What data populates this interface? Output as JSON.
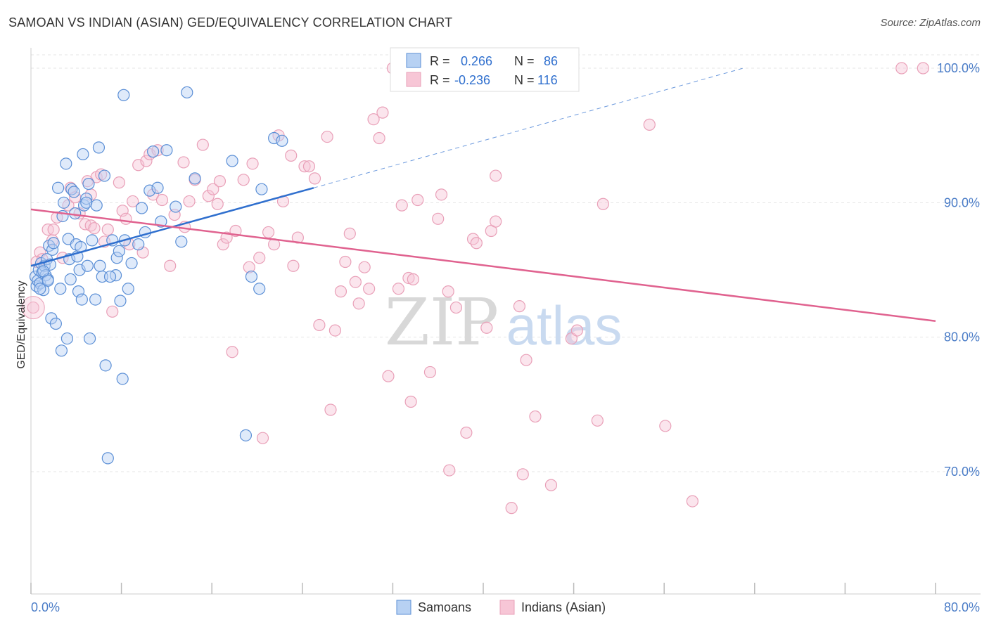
{
  "header": {
    "title": "SAMOAN VS INDIAN (ASIAN) GED/EQUIVALENCY CORRELATION CHART",
    "source": "Source: ZipAtlas.com"
  },
  "watermark": {
    "part1": "ZIP",
    "part2": "atlas"
  },
  "colors": {
    "samoans": "#5b8fd6",
    "samoans_fill": "#b7d1f3",
    "samoans_line": "#2f6fce",
    "indians": "#e9a0b8",
    "indians_fill": "#f7c6d6",
    "indians_line": "#e0628f",
    "axis_tick_label": "#4a7cc7",
    "grid": "#e4e4e4"
  },
  "legend_stats": {
    "row1": {
      "r_label": "R =",
      "r_value": "0.266",
      "n_label": "N =",
      "n_value": "86"
    },
    "row2": {
      "r_label": "R =",
      "r_value": "-0.236",
      "n_label": "N =",
      "n_value": "116"
    }
  },
  "bottom_legend": {
    "item1": "Samoans",
    "item2": "Indians (Asian)"
  },
  "chart_data": {
    "type": "scatter",
    "xlabel": "",
    "ylabel": "GED/Equivalency",
    "xlim": [
      0,
      80
    ],
    "ylim": [
      60,
      103
    ],
    "x_tick_labels": {
      "min": "0.0%",
      "max": "80.0%"
    },
    "y_ticks": [
      70,
      80,
      90,
      100
    ],
    "y_tick_labels": [
      "70.0%",
      "80.0%",
      "90.0%",
      "100.0%"
    ],
    "grid": true,
    "legend_position": "top-center",
    "series": [
      {
        "name": "Samoans",
        "r": 0.266,
        "n": 86,
        "trend": {
          "x": [
            0,
            25
          ],
          "y": [
            85.3,
            91.1
          ],
          "dashed_extension_to": [
            63,
            100
          ]
        },
        "points": [
          [
            0.4,
            84.5
          ],
          [
            0.5,
            83.8
          ],
          [
            0.6,
            84.2
          ],
          [
            0.7,
            85.0
          ],
          [
            0.8,
            84.0
          ],
          [
            0.9,
            85.5
          ],
          [
            1.0,
            84.8
          ],
          [
            1.1,
            83.5
          ],
          [
            1.2,
            85.3
          ],
          [
            1.3,
            84.6
          ],
          [
            1.4,
            85.8
          ],
          [
            1.5,
            84.3
          ],
          [
            1.6,
            86.8
          ],
          [
            1.7,
            85.4
          ],
          [
            1.8,
            81.4
          ],
          [
            1.9,
            86.5
          ],
          [
            2.2,
            81.0
          ],
          [
            2.4,
            91.1
          ],
          [
            2.6,
            83.6
          ],
          [
            2.7,
            79.0
          ],
          [
            2.8,
            89.0
          ],
          [
            2.9,
            90.0
          ],
          [
            3.1,
            92.9
          ],
          [
            3.2,
            79.9
          ],
          [
            3.3,
            87.3
          ],
          [
            3.4,
            85.8
          ],
          [
            3.5,
            84.3
          ],
          [
            3.6,
            91.0
          ],
          [
            3.8,
            90.8
          ],
          [
            3.9,
            89.2
          ],
          [
            4.0,
            86.9
          ],
          [
            4.1,
            86.0
          ],
          [
            4.2,
            83.4
          ],
          [
            4.3,
            85.0
          ],
          [
            4.4,
            86.7
          ],
          [
            4.5,
            82.8
          ],
          [
            4.6,
            93.6
          ],
          [
            4.7,
            89.8
          ],
          [
            4.9,
            90.3
          ],
          [
            5.0,
            85.3
          ],
          [
            5.1,
            91.4
          ],
          [
            5.2,
            79.9
          ],
          [
            5.4,
            87.2
          ],
          [
            5.7,
            82.8
          ],
          [
            6.0,
            94.1
          ],
          [
            6.1,
            85.3
          ],
          [
            6.3,
            84.5
          ],
          [
            6.5,
            92.0
          ],
          [
            6.6,
            77.9
          ],
          [
            6.8,
            71.0
          ],
          [
            7.2,
            87.2
          ],
          [
            7.5,
            84.6
          ],
          [
            7.6,
            85.9
          ],
          [
            7.8,
            86.4
          ],
          [
            7.9,
            82.7
          ],
          [
            8.1,
            76.9
          ],
          [
            8.3,
            87.2
          ],
          [
            8.6,
            83.6
          ],
          [
            8.9,
            85.5
          ],
          [
            9.5,
            86.9
          ],
          [
            9.8,
            89.6
          ],
          [
            10.1,
            87.8
          ],
          [
            10.5,
            90.9
          ],
          [
            10.8,
            93.8
          ],
          [
            11.2,
            91.1
          ],
          [
            11.5,
            88.6
          ],
          [
            12.0,
            93.9
          ],
          [
            12.8,
            89.7
          ],
          [
            13.3,
            87.1
          ],
          [
            13.8,
            98.2
          ],
          [
            14.5,
            91.8
          ],
          [
            17.8,
            93.1
          ],
          [
            19.0,
            72.7
          ],
          [
            19.5,
            84.5
          ],
          [
            20.2,
            83.6
          ],
          [
            20.4,
            91.0
          ],
          [
            21.5,
            94.8
          ],
          [
            22.2,
            94.6
          ],
          [
            8.2,
            98.0
          ],
          [
            4.9,
            90.0
          ],
          [
            2.0,
            87.0
          ],
          [
            0.8,
            83.6
          ],
          [
            1.1,
            84.9
          ],
          [
            1.5,
            84.2
          ],
          [
            7.0,
            84.5
          ],
          [
            5.8,
            89.8
          ]
        ]
      },
      {
        "name": "Indians (Asian)",
        "r": -0.236,
        "n": 116,
        "trend": {
          "x": [
            0,
            80
          ],
          "y": [
            89.5,
            81.2
          ]
        },
        "points": [
          [
            0.2,
            82.2
          ],
          [
            0.8,
            86.3
          ],
          [
            1.0,
            85.8
          ],
          [
            1.5,
            88.0
          ],
          [
            1.9,
            87.2
          ],
          [
            2.3,
            88.9
          ],
          [
            2.8,
            85.9
          ],
          [
            3.3,
            89.8
          ],
          [
            3.5,
            91.1
          ],
          [
            3.9,
            90.4
          ],
          [
            4.3,
            89.2
          ],
          [
            4.8,
            88.4
          ],
          [
            5.0,
            91.6
          ],
          [
            5.3,
            90.6
          ],
          [
            5.3,
            88.3
          ],
          [
            5.8,
            91.9
          ],
          [
            6.2,
            92.1
          ],
          [
            6.5,
            87.1
          ],
          [
            6.8,
            88.0
          ],
          [
            7.2,
            81.9
          ],
          [
            7.8,
            91.5
          ],
          [
            8.1,
            89.4
          ],
          [
            8.4,
            88.8
          ],
          [
            8.7,
            86.9
          ],
          [
            9.0,
            90.1
          ],
          [
            9.5,
            92.8
          ],
          [
            9.9,
            86.3
          ],
          [
            10.2,
            93.1
          ],
          [
            10.5,
            93.6
          ],
          [
            10.8,
            90.6
          ],
          [
            11.2,
            93.9
          ],
          [
            11.6,
            90.2
          ],
          [
            12.3,
            85.3
          ],
          [
            12.7,
            89.1
          ],
          [
            13.5,
            93.0
          ],
          [
            14.0,
            90.1
          ],
          [
            14.5,
            91.7
          ],
          [
            15.2,
            94.3
          ],
          [
            15.7,
            90.5
          ],
          [
            16.1,
            91.0
          ],
          [
            16.5,
            89.9
          ],
          [
            17.0,
            86.9
          ],
          [
            17.3,
            87.4
          ],
          [
            17.8,
            78.9
          ],
          [
            18.1,
            87.9
          ],
          [
            18.8,
            91.7
          ],
          [
            19.3,
            85.2
          ],
          [
            19.6,
            92.9
          ],
          [
            20.2,
            85.9
          ],
          [
            20.5,
            72.5
          ],
          [
            21.0,
            87.8
          ],
          [
            21.5,
            86.9
          ],
          [
            21.9,
            95.0
          ],
          [
            22.3,
            90.1
          ],
          [
            23.0,
            93.5
          ],
          [
            23.2,
            85.3
          ],
          [
            23.6,
            87.4
          ],
          [
            24.2,
            92.7
          ],
          [
            24.6,
            92.7
          ],
          [
            25.1,
            91.8
          ],
          [
            25.5,
            80.9
          ],
          [
            26.2,
            94.9
          ],
          [
            26.5,
            74.6
          ],
          [
            26.9,
            80.5
          ],
          [
            27.4,
            83.4
          ],
          [
            27.8,
            85.6
          ],
          [
            28.2,
            87.7
          ],
          [
            28.7,
            84.1
          ],
          [
            29.0,
            82.5
          ],
          [
            29.5,
            85.2
          ],
          [
            29.9,
            83.6
          ],
          [
            30.3,
            96.2
          ],
          [
            30.8,
            94.8
          ],
          [
            31.1,
            96.7
          ],
          [
            31.6,
            77.1
          ],
          [
            32.0,
            100.0
          ],
          [
            32.5,
            83.6
          ],
          [
            32.8,
            89.8
          ],
          [
            33.4,
            84.4
          ],
          [
            33.6,
            75.2
          ],
          [
            33.8,
            84.3
          ],
          [
            34.2,
            90.2
          ],
          [
            35.3,
            77.4
          ],
          [
            36.0,
            88.8
          ],
          [
            36.3,
            90.6
          ],
          [
            36.9,
            83.4
          ],
          [
            37.0,
            70.1
          ],
          [
            37.6,
            82.2
          ],
          [
            38.5,
            72.9
          ],
          [
            39.1,
            87.3
          ],
          [
            39.4,
            87.0
          ],
          [
            40.3,
            80.7
          ],
          [
            40.7,
            87.9
          ],
          [
            41.1,
            88.6
          ],
          [
            41.1,
            92.0
          ],
          [
            42.5,
            67.3
          ],
          [
            43.2,
            82.3
          ],
          [
            43.5,
            69.8
          ],
          [
            43.8,
            78.3
          ],
          [
            44.6,
            74.1
          ],
          [
            46.0,
            69.0
          ],
          [
            46.4,
            100.0
          ],
          [
            47.8,
            79.9
          ],
          [
            48.3,
            80.5
          ],
          [
            50.1,
            73.8
          ],
          [
            50.6,
            89.9
          ],
          [
            54.7,
            95.8
          ],
          [
            56.1,
            73.4
          ],
          [
            58.5,
            67.8
          ],
          [
            77.0,
            100.0
          ],
          [
            78.9,
            100.0
          ],
          [
            0.5,
            85.6
          ],
          [
            2.0,
            88.0
          ],
          [
            5.6,
            88.1
          ],
          [
            13.6,
            88.2
          ],
          [
            16.7,
            91.6
          ]
        ]
      }
    ]
  }
}
